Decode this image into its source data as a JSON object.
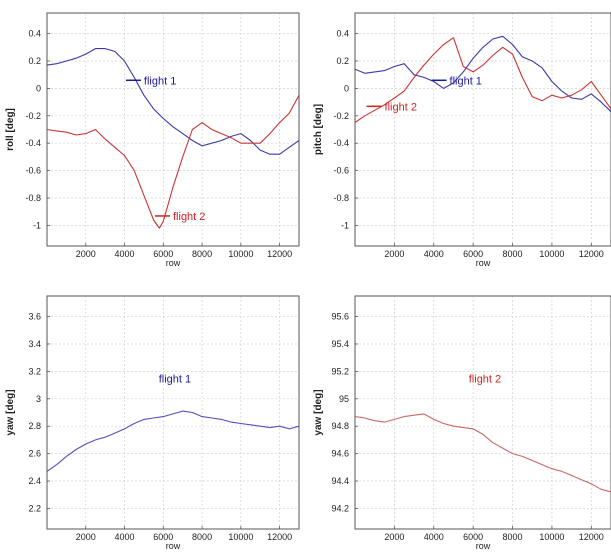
{
  "chart_data": [
    {
      "type": "line",
      "xlabel": "row",
      "ylabel": "roll [deg]",
      "xlim": [
        0,
        13000
      ],
      "ylim": [
        -1.15,
        0.55
      ],
      "xticks": [
        2000,
        4000,
        6000,
        8000,
        10000,
        12000
      ],
      "yticks": [
        -1,
        -0.8,
        -0.6,
        -0.4,
        -0.2,
        0,
        0.2,
        0.4
      ],
      "grid": true,
      "series": [
        {
          "name": "flight 1",
          "color": "#3a3aa8",
          "x": [
            0,
            500,
            1000,
            1500,
            2000,
            2500,
            3000,
            3500,
            4000,
            4500,
            5000,
            5500,
            6000,
            6500,
            7000,
            7500,
            8000,
            8500,
            9000,
            9500,
            10000,
            10500,
            11000,
            11500,
            12000,
            12500,
            13000
          ],
          "y": [
            0.17,
            0.18,
            0.2,
            0.22,
            0.25,
            0.29,
            0.29,
            0.27,
            0.2,
            0.08,
            -0.05,
            -0.15,
            -0.22,
            -0.28,
            -0.33,
            -0.38,
            -0.42,
            -0.4,
            -0.38,
            -0.35,
            -0.33,
            -0.38,
            -0.45,
            -0.48,
            -0.48,
            -0.43,
            -0.38
          ]
        },
        {
          "name": "flight 2",
          "color": "#cc3333",
          "x": [
            0,
            500,
            1000,
            1500,
            2000,
            2500,
            3000,
            3500,
            4000,
            4500,
            5000,
            5500,
            5800,
            6000,
            6500,
            7000,
            7500,
            8000,
            8500,
            9000,
            9500,
            10000,
            10500,
            11000,
            11500,
            12000,
            12500,
            13000
          ],
          "y": [
            -0.3,
            -0.31,
            -0.32,
            -0.34,
            -0.33,
            -0.3,
            -0.37,
            -0.43,
            -0.49,
            -0.6,
            -0.78,
            -0.96,
            -1.02,
            -0.97,
            -0.72,
            -0.5,
            -0.3,
            -0.25,
            -0.3,
            -0.33,
            -0.36,
            -0.4,
            -0.4,
            -0.4,
            -0.33,
            -0.25,
            -0.18,
            -0.05
          ]
        }
      ],
      "annotations": [
        {
          "text": "flight 1",
          "color": "#1a1a99",
          "x": 5000,
          "y": 0.03
        },
        {
          "text": "flight 2",
          "color": "#cc2222",
          "x": 6500,
          "y": -0.96
        }
      ]
    },
    {
      "type": "line",
      "xlabel": "row",
      "ylabel": "pitch [deg]",
      "xlim": [
        0,
        13000
      ],
      "ylim": [
        -1.15,
        0.55
      ],
      "xticks": [
        2000,
        4000,
        6000,
        8000,
        10000,
        12000
      ],
      "yticks": [
        -1,
        -0.8,
        -0.6,
        -0.4,
        -0.2,
        0,
        0.2,
        0.4
      ],
      "grid": true,
      "series": [
        {
          "name": "flight 1",
          "color": "#3a3aa8",
          "x": [
            0,
            500,
            1000,
            1500,
            2000,
            2500,
            3000,
            3500,
            4000,
            4500,
            5000,
            5500,
            6000,
            6500,
            7000,
            7500,
            8000,
            8500,
            9000,
            9500,
            10000,
            10500,
            11000,
            11500,
            12000,
            12500,
            13000
          ],
          "y": [
            0.14,
            0.11,
            0.12,
            0.13,
            0.16,
            0.18,
            0.1,
            0.08,
            0.05,
            0.0,
            0.04,
            0.12,
            0.22,
            0.3,
            0.36,
            0.38,
            0.32,
            0.23,
            0.2,
            0.15,
            0.05,
            -0.02,
            -0.07,
            -0.08,
            -0.04,
            -0.1,
            -0.17
          ]
        },
        {
          "name": "flight 2",
          "color": "#cc3333",
          "x": [
            0,
            500,
            1000,
            1500,
            2000,
            2500,
            3000,
            3500,
            4000,
            4500,
            5000,
            5500,
            6000,
            6500,
            7000,
            7500,
            8000,
            8500,
            9000,
            9500,
            10000,
            10500,
            11000,
            11500,
            12000,
            12500,
            13000
          ],
          "y": [
            -0.25,
            -0.2,
            -0.16,
            -0.12,
            -0.07,
            -0.02,
            0.08,
            0.17,
            0.25,
            0.32,
            0.37,
            0.16,
            0.12,
            0.17,
            0.24,
            0.3,
            0.25,
            0.08,
            -0.06,
            -0.09,
            -0.05,
            -0.07,
            -0.05,
            -0.01,
            0.05,
            -0.05,
            -0.15
          ]
        }
      ],
      "annotations": [
        {
          "text": "flight 1",
          "color": "#1a1a99",
          "x": 4800,
          "y": 0.03
        },
        {
          "text": "flight 2",
          "color": "#cc2222",
          "x": 1500,
          "y": -0.16
        }
      ]
    },
    {
      "type": "line",
      "xlabel": "row",
      "ylabel": "yaw [deg]",
      "xlim": [
        0,
        13000
      ],
      "ylim": [
        2.05,
        3.75
      ],
      "xticks": [
        2000,
        4000,
        6000,
        8000,
        10000,
        12000
      ],
      "yticks": [
        2.2,
        2.4,
        2.6,
        2.8,
        3,
        3.2,
        3.4,
        3.6
      ],
      "grid": true,
      "series": [
        {
          "name": "flight 1",
          "color": "#5050c0",
          "x": [
            0,
            500,
            1000,
            1500,
            2000,
            2500,
            3000,
            3500,
            4000,
            4500,
            5000,
            5500,
            6000,
            6500,
            7000,
            7500,
            8000,
            8500,
            9000,
            9500,
            10000,
            10500,
            11000,
            11500,
            12000,
            12500,
            13000
          ],
          "y": [
            2.47,
            2.52,
            2.58,
            2.63,
            2.67,
            2.7,
            2.72,
            2.75,
            2.78,
            2.82,
            2.85,
            2.86,
            2.87,
            2.89,
            2.91,
            2.9,
            2.87,
            2.86,
            2.85,
            2.83,
            2.82,
            2.81,
            2.8,
            2.79,
            2.8,
            2.78,
            2.8
          ]
        }
      ],
      "annotations": [
        {
          "text": "flight 1",
          "color": "#1a1a99",
          "x": 6600,
          "y": 3.12
        }
      ]
    },
    {
      "type": "line",
      "xlabel": "row",
      "ylabel": "yaw [deg]",
      "xlim": [
        0,
        13000
      ],
      "ylim": [
        94.05,
        95.75
      ],
      "xticks": [
        2000,
        4000,
        6000,
        8000,
        10000,
        12000
      ],
      "yticks": [
        94.2,
        94.4,
        94.6,
        94.8,
        95,
        95.2,
        95.4,
        95.6
      ],
      "grid": true,
      "series": [
        {
          "name": "flight 2",
          "color": "#cc6666",
          "x": [
            0,
            500,
            1000,
            1500,
            2000,
            2500,
            3000,
            3500,
            4000,
            4500,
            5000,
            5500,
            6000,
            6500,
            7000,
            7500,
            8000,
            8500,
            9000,
            9500,
            10000,
            10500,
            11000,
            11500,
            12000,
            12500,
            13000
          ],
          "y": [
            94.87,
            94.86,
            94.84,
            94.83,
            94.85,
            94.87,
            94.88,
            94.89,
            94.85,
            94.82,
            94.8,
            94.79,
            94.78,
            94.74,
            94.68,
            94.64,
            94.6,
            94.58,
            94.55,
            94.52,
            94.49,
            94.47,
            94.44,
            94.41,
            94.38,
            94.34,
            94.32
          ]
        }
      ],
      "annotations": [
        {
          "text": "flight 2",
          "color": "#cc2222",
          "x": 6600,
          "y": 95.12
        }
      ]
    }
  ]
}
